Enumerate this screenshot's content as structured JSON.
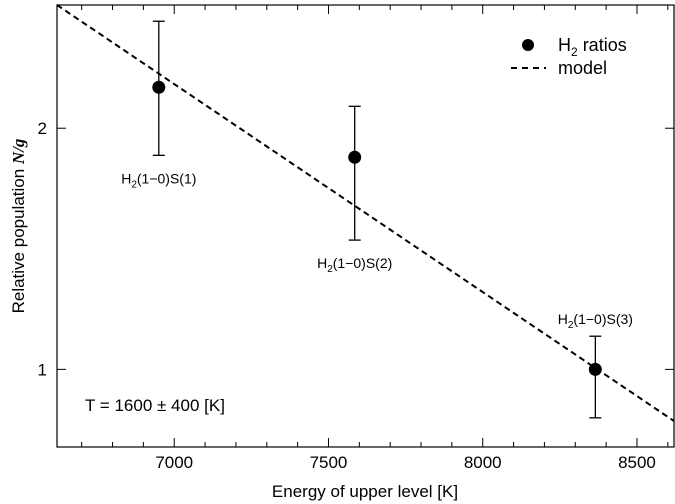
{
  "chart_data": {
    "type": "scatter",
    "xlabel": "Energy of upper level [K]",
    "ylabel": {
      "prefix": "Relative population ",
      "var": "N/g"
    },
    "xlim": [
      6620,
      8620
    ],
    "ylim": [
      0.8,
      2.85
    ],
    "y_scale": "log",
    "x_ticks_major": [
      7000,
      7500,
      8000,
      8500
    ],
    "y_ticks_major": [
      1,
      2
    ],
    "grid": false,
    "legend_placement": "top-right",
    "legend": [
      {
        "key": "ratios",
        "marker": "filled-circle",
        "label_main": "H",
        "label_sub": "2",
        "label_rest": " ratios"
      },
      {
        "key": "model",
        "marker": "dashed-line",
        "label": "model"
      }
    ],
    "series": [
      {
        "key": "ratios",
        "points": [
          {
            "x": 6950,
            "y": 2.25,
            "yerr_low": 1.85,
            "yerr_high": 2.72,
            "label_main": "H",
            "label_sub": "2",
            "label_rest": "(1−0)S(1)",
            "label_pos": "below"
          },
          {
            "x": 7585,
            "y": 1.84,
            "yerr_low": 1.45,
            "yerr_high": 2.13,
            "label_main": "H",
            "label_sub": "2",
            "label_rest": "(1−0)S(2)",
            "label_pos": "below"
          },
          {
            "x": 8365,
            "y": 1.0,
            "yerr_low": 0.87,
            "yerr_high": 1.1,
            "label_main": "H",
            "label_sub": "2",
            "label_rest": "(1−0)S(3)",
            "label_pos": "above"
          }
        ]
      },
      {
        "key": "model",
        "line": [
          {
            "x": 6620,
            "y": 2.85
          },
          {
            "x": 8620,
            "y": 0.862
          }
        ]
      }
    ],
    "annotation": "T = 1600 ± 400 [K]"
  }
}
